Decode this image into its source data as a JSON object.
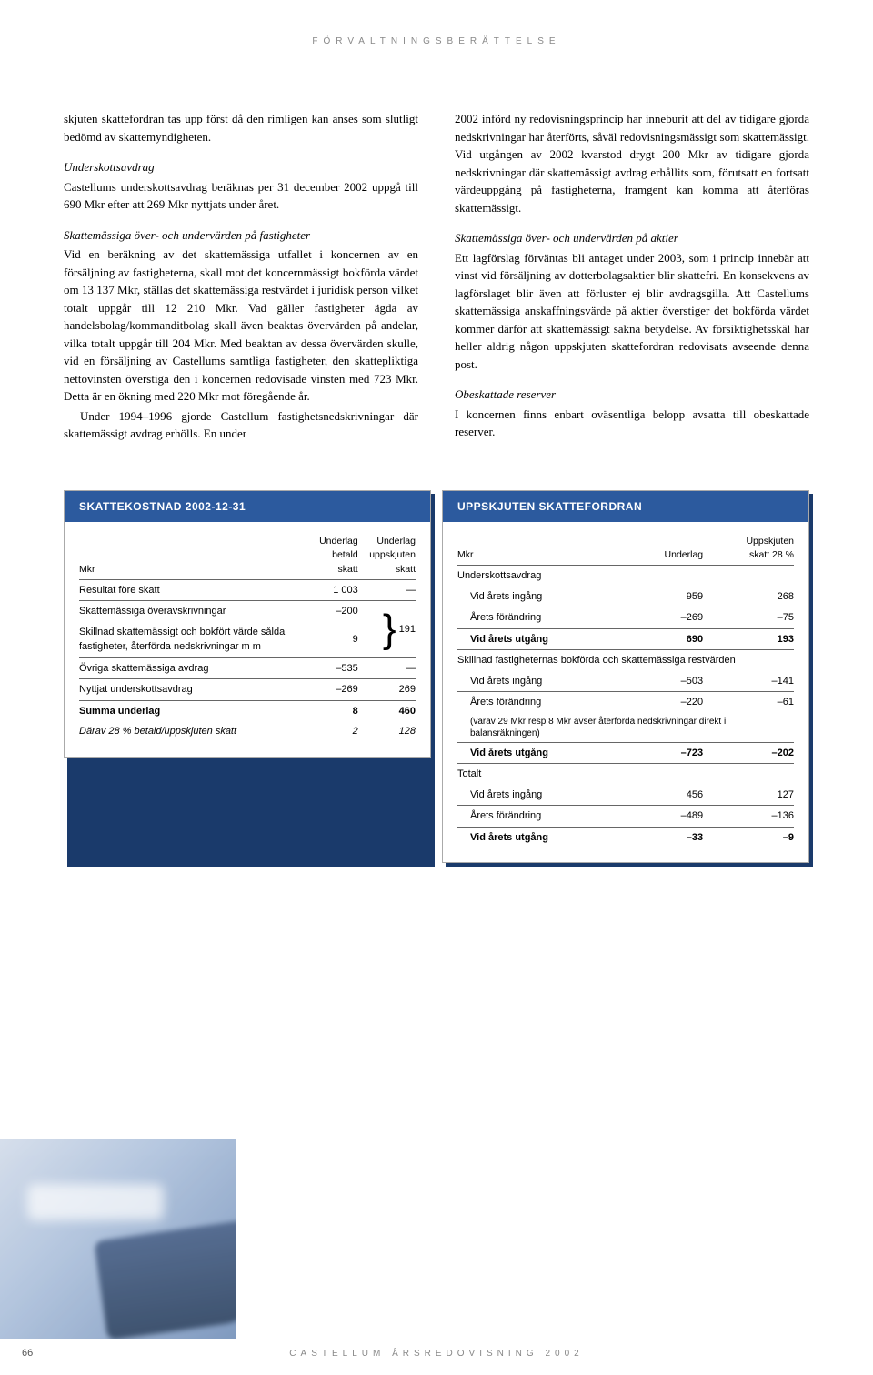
{
  "header": "FÖRVALTNINGSBERÄTTELSE",
  "footer": "CASTELLUM ÅRSREDOVISNING 2002",
  "page_number": "66",
  "left": {
    "p1": "skjuten skattefordran tas upp först då den rimligen kan anses som slutligt bedömd av skattemyndigheten.",
    "h1": "Underskottsavdrag",
    "p2": "Castellums underskottsavdrag beräknas per 31 december 2002 uppgå till 690 Mkr efter att 269 Mkr nyttjats under året.",
    "h2": "Skattemässiga över- och undervärden på fastigheter",
    "p3": "Vid en beräkning av det skattemässiga utfallet i koncernen av en försäljning av fastigheterna, skall mot det koncernmässigt bokförda värdet om 13 137 Mkr, ställas det skattemässiga restvärdet i juridisk person vilket totalt uppgår till 12 210 Mkr. Vad gäller fastigheter ägda av handelsbolag/kommanditbolag skall även beaktas övervärden på andelar, vilka totalt uppgår till 204 Mkr. Med beaktan av dessa övervärden skulle, vid en försäljning av Castellums samtliga fastigheter, den skattepliktiga nettovinsten överstiga den i koncernen redovisade vinsten med 723 Mkr. Detta är en ökning med 220 Mkr mot föregående år.",
    "p4": "Under 1994–1996 gjorde Castellum fastighetsnedskrivningar där skattemässigt avdrag erhölls. En under"
  },
  "right": {
    "p1": "2002 införd ny redovisningsprincip har inneburit att del av tidigare gjorda nedskrivningar har återförts, såväl redovisningsmässigt som skattemässigt. Vid utgången av 2002 kvarstod drygt 200 Mkr av tidigare gjorda nedskrivningar där skattemässigt avdrag erhållits som, förutsatt en fortsatt värdeuppgång på fastigheterna, framgent kan komma att återföras skattemässigt.",
    "h1": "Skattemässiga över- och undervärden på aktier",
    "p2": "Ett lagförslag förväntas bli antaget under 2003, som i princip innebär att vinst vid försäljning av dotterbolagsaktier blir skattefri. En konsekvens av lagförslaget blir även att förluster ej blir avdragsgilla. Att Castellums skattemässiga anskaffningsvärde på aktier överstiger det bokförda värdet kommer därför att skattemässigt sakna betydelse. Av försiktighetsskäl har heller aldrig någon uppskjuten skattefordran redovisats avseende denna post.",
    "h2": "Obeskattade reserver",
    "p3": "I koncernen finns enbart oväsentliga belopp avsatta till obeskattade reserver."
  },
  "table1": {
    "title": "SKATTEKOSTNAD 2002-12-31",
    "head": {
      "c0": "Mkr",
      "c1a": "Underlag",
      "c1b": "betald skatt",
      "c2a": "Underlag",
      "c2b": "uppskjuten skatt"
    },
    "rows": {
      "r0": {
        "label": "Resultat före skatt",
        "a": "1 003",
        "b": "—"
      },
      "r1": {
        "label": "Skattemässiga överavskrivningar",
        "a": "–200",
        "b": ""
      },
      "r2": {
        "label": "Skillnad skattemässigt och bokfört värde sålda fastigheter, återförda nedskrivningar m m",
        "a": "9",
        "b": "191"
      },
      "r3": {
        "label": "Övriga skattemässiga avdrag",
        "a": "–535",
        "b": "—"
      },
      "r4": {
        "label": "Nyttjat underskottsavdrag",
        "a": "–269",
        "b": "269"
      },
      "r5": {
        "label": "Summa underlag",
        "a": "8",
        "b": "460"
      },
      "r6": {
        "label": "Därav 28 % betald/uppskjuten skatt",
        "a": "2",
        "b": "128"
      }
    }
  },
  "table2": {
    "title": "UPPSKJUTEN SKATTEFORDRAN",
    "head": {
      "c0": "Mkr",
      "c1": "Underlag",
      "c2a": "Uppskjuten",
      "c2b": "skatt 28 %"
    },
    "sections": {
      "s1": "Underskottsavdrag",
      "r1": {
        "label": "Vid årets ingång",
        "a": "959",
        "b": "268"
      },
      "r2": {
        "label": "Årets förändring",
        "a": "–269",
        "b": "–75"
      },
      "r3": {
        "label": "Vid årets utgång",
        "a": "690",
        "b": "193"
      },
      "s2": "Skillnad fastigheternas bokförda och skattemässiga restvärden",
      "r4": {
        "label": "Vid årets ingång",
        "a": "–503",
        "b": "–141"
      },
      "r5": {
        "label": "Årets förändring",
        "a": "–220",
        "b": "–61"
      },
      "r5note": "(varav 29 Mkr resp 8 Mkr avser återförda nedskrivningar direkt i balansräkningen)",
      "r6": {
        "label": "Vid årets utgång",
        "a": "–723",
        "b": "–202"
      },
      "s3": "Totalt",
      "r7": {
        "label": "Vid årets ingång",
        "a": "456",
        "b": "127"
      },
      "r8": {
        "label": "Årets förändring",
        "a": "–489",
        "b": "–136"
      },
      "r9": {
        "label": "Vid årets utgång",
        "a": "–33",
        "b": "–9"
      }
    }
  }
}
